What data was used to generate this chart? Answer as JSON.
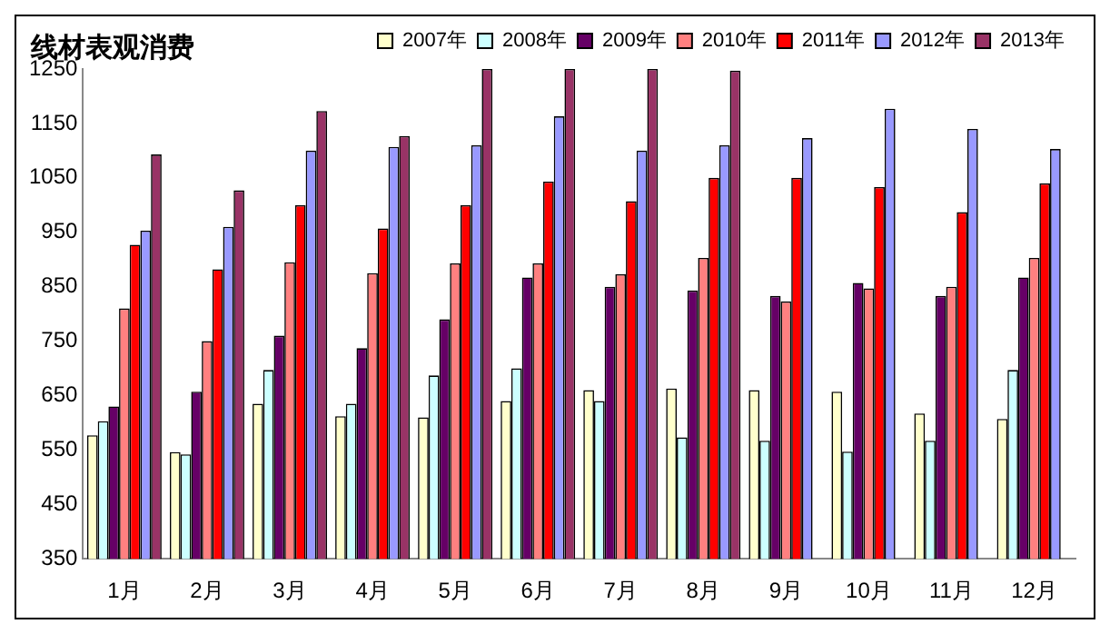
{
  "chart_data": {
    "type": "bar",
    "title": "线材表观消费",
    "categories": [
      "1月",
      "2月",
      "3月",
      "4月",
      "5月",
      "6月",
      "7月",
      "8月",
      "9月",
      "10月",
      "11月",
      "12月"
    ],
    "series": [
      {
        "name": "2007年",
        "color": "#ffffcc",
        "values": [
          577,
          546,
          635,
          612,
          610,
          640,
          660,
          663,
          660,
          657,
          617,
          607
        ]
      },
      {
        "name": "2008年",
        "color": "#ccffff",
        "values": [
          603,
          542,
          697,
          635,
          687,
          700,
          640,
          573,
          567,
          547,
          567,
          697
        ]
      },
      {
        "name": "2009年",
        "color": "#660066",
        "values": [
          630,
          657,
          760,
          737,
          790,
          867,
          850,
          843,
          833,
          857,
          833,
          867
        ]
      },
      {
        "name": "2010年",
        "color": "#ff8080",
        "values": [
          810,
          750,
          895,
          875,
          893,
          893,
          873,
          903,
          823,
          847,
          850,
          903
        ]
      },
      {
        "name": "2011年",
        "color": "#ff0000",
        "values": [
          927,
          882,
          1000,
          957,
          1000,
          1043,
          1007,
          1050,
          1050,
          1033,
          987,
          1040
        ]
      },
      {
        "name": "2012年",
        "color": "#9999ff",
        "values": [
          953,
          960,
          1100,
          1107,
          1110,
          1163,
          1100,
          1110,
          1123,
          1177,
          1140,
          1103
        ]
      },
      {
        "name": "2013年",
        "color": "#993366",
        "values": [
          1093,
          1027,
          1173,
          1127,
          1250,
          1250,
          1250,
          1247,
          null,
          null,
          null,
          null
        ]
      }
    ],
    "ylim": [
      350,
      1250
    ],
    "yticks": [
      350,
      450,
      550,
      650,
      750,
      850,
      950,
      1050,
      1150,
      1250
    ],
    "grid": false,
    "legend": "top"
  }
}
